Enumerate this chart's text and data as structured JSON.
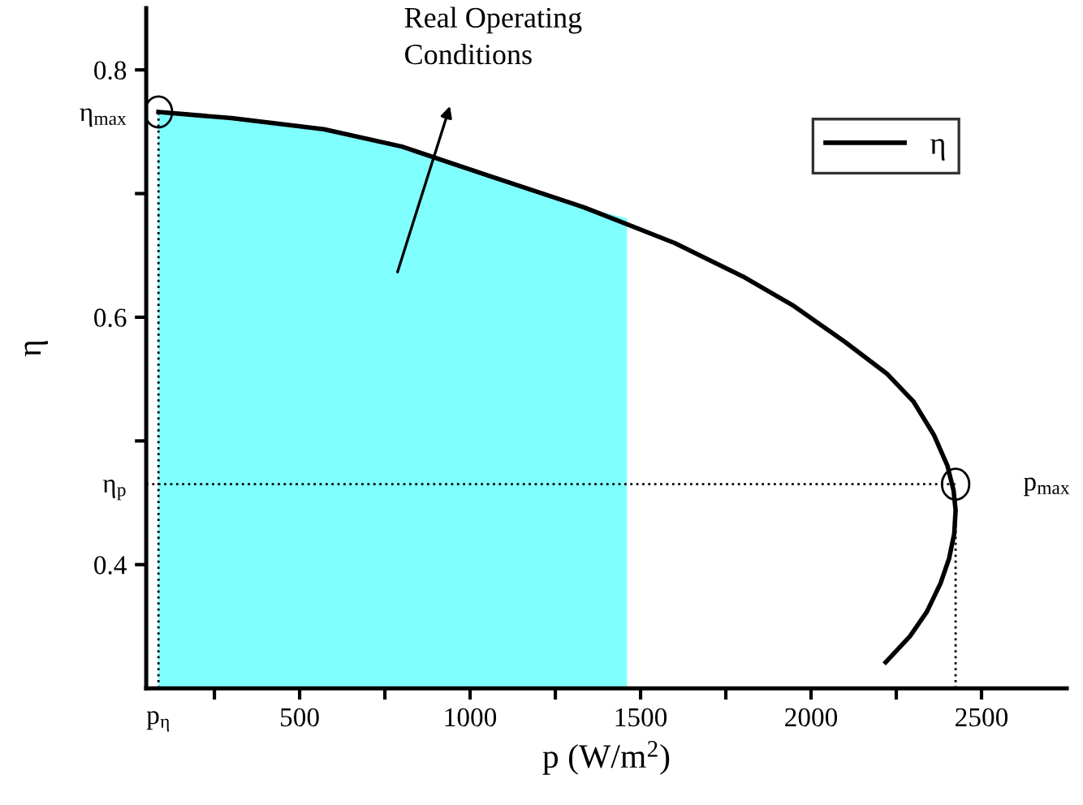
{
  "chart_data": {
    "type": "line",
    "xlabel": "p (W/m$^{2}$)",
    "ylabel": "η",
    "xlim": [
      50,
      2750
    ],
    "ylim": [
      0.3,
      0.85
    ],
    "xticks": [
      {
        "value": 86,
        "label": "p$_{η}$"
      },
      {
        "value": 250,
        "label": null
      },
      500,
      {
        "value": 750,
        "label": null
      },
      1000,
      {
        "value": 1250,
        "label": null
      },
      1500,
      {
        "value": 1750,
        "label": null
      },
      2000,
      {
        "value": 2250,
        "label": null
      },
      2500
    ],
    "yticks": [
      {
        "value": 0.4,
        "label": "0.4"
      },
      {
        "value": 0.465,
        "label": "η$_{p}$"
      },
      {
        "value": 0.5,
        "label": null
      },
      {
        "value": 0.6,
        "label": "0.6"
      },
      {
        "value": 0.7,
        "label": null
      },
      {
        "value": 0.766,
        "label": "η$_{max}$"
      },
      {
        "value": 0.8,
        "label": "0.8"
      }
    ],
    "series": [
      {
        "type": "area",
        "color": "#80ffff",
        "x": [
          86,
          300,
          571,
          800,
          1048,
          1333,
          1460
        ],
        "values": [
          0.766,
          0.761,
          0.752,
          0.738,
          0.715,
          0.689,
          0.68
        ]
      },
      {
        "name": "η",
        "color": "#000000",
        "x": [
          86,
          300,
          571,
          800,
          1048,
          1333,
          1600,
          1800,
          1950,
          2100,
          2224,
          2300,
          2360,
          2400,
          2418,
          2424,
          2420,
          2405,
          2380,
          2340,
          2290,
          2219
        ],
        "values": [
          0.766,
          0.761,
          0.752,
          0.738,
          0.715,
          0.689,
          0.66,
          0.633,
          0.609,
          0.58,
          0.554,
          0.532,
          0.505,
          0.48,
          0.46,
          0.444,
          0.425,
          0.405,
          0.385,
          0.362,
          0.342,
          0.321
        ]
      }
    ],
    "ref_lines": [
      {
        "axis": "x",
        "value": 86,
        "line_style": "dotted",
        "color": "#000000"
      },
      {
        "axis": "y",
        "value": 0.465,
        "line_style": "dotted",
        "color": "#000000"
      },
      {
        "axis": "x",
        "value": 2424,
        "line_style": "dotted",
        "color": "#000000"
      }
    ],
    "annotations": [
      "Real Operating\nConditions",
      {
        "text": "p$_{max}$",
        "x": 2424,
        "y": 0.465
      }
    ],
    "legend": "top right",
    "grid": false,
    "marker": "none",
    "line_style": "solid"
  }
}
